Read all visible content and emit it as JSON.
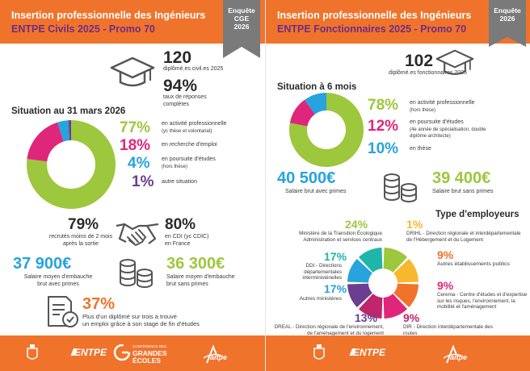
{
  "left": {
    "header": {
      "title": "Insertion professionnelle des Ingénieurs",
      "subtitle": "ENTPE Civils 2025 - Promo 70"
    },
    "tag": {
      "line1": "Enquête",
      "line2": "CGE",
      "line3": "2026"
    },
    "graduates": {
      "value": "120",
      "label": "diplômé.es civil.es 2025"
    },
    "response_rate": {
      "value": "94%",
      "label1": "taux de réponses",
      "label2": "complètes"
    },
    "situation_title": "Situation au 31 mars 2026",
    "situation": [
      {
        "value": "77%",
        "label": "en activité professionnelle",
        "sub": "(yc thèse et volontariat)",
        "color": "#9dc73c",
        "share": 77
      },
      {
        "value": "18%",
        "label": "en recherche d'emploi",
        "sub": "",
        "color": "#e0267a",
        "share": 18
      },
      {
        "value": "4%",
        "label": "en poursuite d'études",
        "sub": "(hors thèse)",
        "color": "#27a3dd",
        "share": 4
      },
      {
        "value": "1%",
        "label": "autre situation",
        "sub": "",
        "color": "#6d3d91",
        "share": 1
      }
    ],
    "recruited": {
      "value": "79%",
      "label1": "recrutés moins de 2 mois",
      "label2": "après la sortie"
    },
    "cdi": {
      "value": "80%",
      "label1": "en CDI (yc CDIC)",
      "label2": "en France"
    },
    "salary_gross_bonus": {
      "value": "37 900€",
      "label1": "Salaire moyen d'embauche",
      "label2": "brut avec primes"
    },
    "salary_gross": {
      "value": "36 300€",
      "label1": "Salaire moyen d'embauche",
      "label2": "brut sans primes"
    },
    "internship": {
      "value": "37%",
      "label1": "Plus d'un diplômé sur trois a trouvé",
      "label2": "un emploi grâce à son stage de fin d'études"
    },
    "footer": {
      "entpe": "ENTPE",
      "cge_line1": "CONFÉRENCE DES",
      "cge_line2": "GRANDES",
      "cge_line3": "ÉCOLES",
      "aitpe": "aitpe"
    }
  },
  "right": {
    "header": {
      "title": "Insertion professionnelle des Ingénieurs",
      "subtitle": "ENTPE Fonctionnaires 2025 - Promo 70"
    },
    "tag": {
      "line1": "Enquête",
      "line2": "2026"
    },
    "graduates": {
      "value": "102",
      "label": "diplômé.es fonctionnaires 2025"
    },
    "situation_title": "Situation à 6 mois",
    "situation": [
      {
        "value": "78%",
        "label": "en activité professionnelle",
        "sub": "(hors thèse)",
        "color": "#9dc73c",
        "share": 78
      },
      {
        "value": "12%",
        "label": "en poursuite d'études",
        "sub": "(4e année de spécialisation, double diplôme architecte)",
        "color": "#e0267a",
        "share": 12
      },
      {
        "value": "10%",
        "label": "en thèse",
        "sub": "",
        "color": "#27a3dd",
        "share": 10
      }
    ],
    "salary_bonus": {
      "value": "40 500€",
      "label": "Salaire brut avec primes"
    },
    "salary": {
      "value": "39 400€",
      "label": "Salaire brut sans primes"
    },
    "employers_title": "Type d'employeurs",
    "employers": [
      {
        "value": "24%",
        "label": "Ministère de la Transition Écologique",
        "sub": "Administration et services centraux",
        "color": "#9dc73c",
        "share": 24
      },
      {
        "value": "1%",
        "label": "DRIHL",
        "sub": "- Direction régionale et interdépartementale de l'Hébergement et du Logement",
        "color": "#f6b82c",
        "share": 1
      },
      {
        "value": "9%",
        "label": "Autres établissements publics",
        "sub": "",
        "color": "#f0732c",
        "share": 9
      },
      {
        "value": "9%",
        "label": "Cerema",
        "sub": "- Centre d'études et d'expertise sur les risques, l'environnement, la mobilité et l'aménagement",
        "color": "#e0267a",
        "share": 9
      },
      {
        "value": "9%",
        "label": "DIR",
        "sub": "- Direction interdépartementale des routes",
        "color": "#c0266b",
        "share": 9
      },
      {
        "value": "13%",
        "label": "DREAL",
        "sub": "- Direction régionale de l'environnement, de l'aménagement et du logement",
        "color": "#6d3d91",
        "share": 13
      },
      {
        "value": "17%",
        "label": "Autres ministères",
        "sub": "",
        "color": "#27a3dd",
        "share": 17
      },
      {
        "value": "17%",
        "label": "DDI",
        "sub": "- Directions départementales interministérielles",
        "color": "#1fb5a8",
        "share": 17
      }
    ],
    "footer": {
      "entpe": "ENTPE",
      "aitpe": "aitpe"
    }
  }
}
